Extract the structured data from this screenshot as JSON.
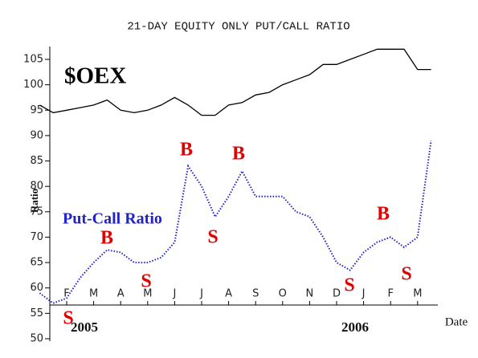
{
  "chart_data": {
    "type": "line",
    "title": "21-DAY EQUITY ONLY PUT/CALL RATIO",
    "y_label": "Ratio",
    "x_label": "Date",
    "categories": [
      null,
      null,
      "F",
      null,
      "M",
      null,
      "A",
      null,
      "M",
      null,
      "J",
      null,
      "J",
      null,
      "A",
      null,
      "S",
      null,
      "O",
      null,
      "N",
      null,
      "D",
      null,
      "J",
      null,
      "F",
      null,
      "M",
      null
    ],
    "year_labels": [
      "2005",
      "2006"
    ],
    "series": [
      {
        "name": "$OEX",
        "color": "#000000",
        "style": "solid",
        "values": [
          96,
          94.5,
          95,
          95.5,
          96,
          97,
          95,
          94.5,
          95,
          96,
          97.5,
          96,
          94,
          94,
          96,
          96.5,
          98,
          98.5,
          100,
          101,
          102,
          104,
          104,
          105,
          106,
          107,
          107,
          107,
          103,
          103
        ]
      },
      {
        "name": "Put-Call Ratio",
        "color": "#2222cc",
        "style": "dotted",
        "values": [
          59,
          57,
          58,
          62,
          65,
          67.5,
          67,
          65,
          65,
          66,
          69,
          84,
          80,
          74,
          78,
          83,
          78,
          78,
          78,
          75,
          74,
          70,
          65,
          63.5,
          67,
          69,
          70,
          68,
          70,
          89
        ]
      }
    ],
    "annotations": [
      "S",
      "B",
      "S",
      "B",
      "S",
      "B",
      "S",
      "B",
      "S"
    ],
    "annotation_color": "#e00000",
    "ylim": [
      50,
      108
    ],
    "yticks": [
      50,
      55,
      60,
      65,
      70,
      75,
      80,
      85,
      90,
      95,
      100,
      105
    ]
  }
}
